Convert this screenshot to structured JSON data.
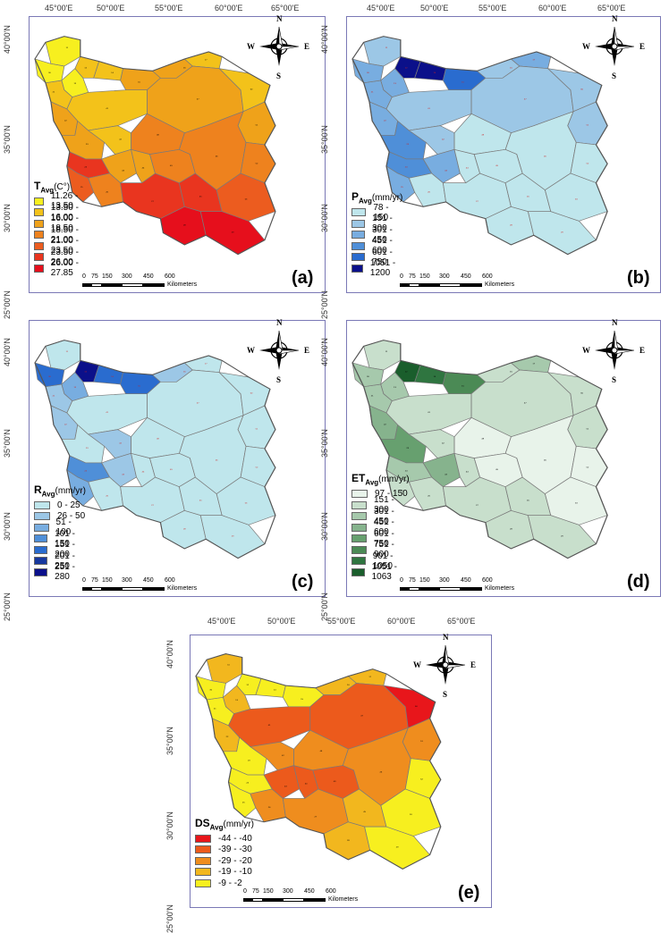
{
  "longitude_ticks": [
    "45°00'E",
    "50°00'E",
    "55°00'E",
    "60°00'E",
    "65°00'E"
  ],
  "latitude_ticks": [
    "40°00'N",
    "35°00'N",
    "30°00'N",
    "25°00'N"
  ],
  "compass": {
    "n": "N",
    "s": "S",
    "e": "E",
    "w": "W",
    "icon": "compass-rose-icon"
  },
  "scale": {
    "ticks": [
      "0",
      "75",
      "150",
      "300",
      "450",
      "600"
    ],
    "unit": "Kilometers"
  },
  "panels": [
    {
      "id": "a",
      "label": "(a)",
      "title_main": "T",
      "title_sub": "Avg",
      "title_unit": "(C°)",
      "label_color": "#000000",
      "legend": [
        {
          "range": "11.26 - 13.50",
          "color": "#f7ef1f"
        },
        {
          "range": "13.50 - 16.00",
          "color": "#f3c21a"
        },
        {
          "range": "16.00 - 18.50",
          "color": "#efa21a"
        },
        {
          "range": "18.50 - 21.00",
          "color": "#ee821e"
        },
        {
          "range": "21.00 - 23.50",
          "color": "#ec5c1f"
        },
        {
          "range": "23.50 - 26.00",
          "color": "#e9351f"
        },
        {
          "range": "26.00 - 27.85",
          "color": "#e60f1c"
        }
      ],
      "regions": [
        {
          "id": "11",
          "color": "#f7ef1f"
        },
        {
          "id": "12",
          "color": "#f3c21a"
        },
        {
          "id": "13",
          "color": "#f7ef1f"
        },
        {
          "id": "14",
          "color": "#f3c21a"
        },
        {
          "id": "15",
          "color": "#efa21a"
        },
        {
          "id": "16",
          "color": "#efa21a"
        },
        {
          "id": "17",
          "color": "#f3c21a"
        },
        {
          "id": "21",
          "color": "#f3c21a"
        },
        {
          "id": "22",
          "color": "#efa21a"
        },
        {
          "id": "23",
          "color": "#efa21a"
        },
        {
          "id": "24",
          "color": "#e9351f"
        },
        {
          "id": "25",
          "color": "#ec5c1f"
        },
        {
          "id": "26",
          "color": "#ee821e"
        },
        {
          "id": "27",
          "color": "#e9351f"
        },
        {
          "id": "28",
          "color": "#e60f1c"
        },
        {
          "id": "29",
          "color": "#e60f1c"
        },
        {
          "id": "30",
          "color": "#f7ef1f"
        },
        {
          "id": "41",
          "color": "#f3c21a"
        },
        {
          "id": "42",
          "color": "#f3c21a"
        },
        {
          "id": "43",
          "color": "#efa21a"
        },
        {
          "id": "44",
          "color": "#efa21a"
        },
        {
          "id": "45",
          "color": "#e9351f"
        },
        {
          "id": "46",
          "color": "#ee821e"
        },
        {
          "id": "47",
          "color": "#efa21a"
        },
        {
          "id": "48",
          "color": "#ee821e"
        },
        {
          "id": "49",
          "color": "#ee821e"
        },
        {
          "id": "51",
          "color": "#efa21a"
        },
        {
          "id": "52",
          "color": "#ee821e"
        },
        {
          "id": "53",
          "color": "#ec5c1f"
        },
        {
          "id": "60",
          "color": "#f3c21a"
        }
      ]
    },
    {
      "id": "b",
      "label": "(b)",
      "title_main": "P",
      "title_sub": "Avg",
      "title_unit": "(mm/yr)",
      "label_color": "#cc2222",
      "legend": [
        {
          "range": "78 - 150",
          "color": "#bfe6ec"
        },
        {
          "range": "151 - 300",
          "color": "#9cc7e6"
        },
        {
          "range": "301 - 450",
          "color": "#78ade0"
        },
        {
          "range": "451 - 600",
          "color": "#4f8fd8"
        },
        {
          "range": "601 - 750",
          "color": "#2a6ccf"
        },
        {
          "range": "1051 - 1200",
          "color": "#0b108a"
        }
      ],
      "regions": [
        {
          "id": "11",
          "color": "#9cc7e6"
        },
        {
          "id": "12",
          "color": "#0b108a"
        },
        {
          "id": "13",
          "color": "#78ade0"
        },
        {
          "id": "14",
          "color": "#0b108a"
        },
        {
          "id": "15",
          "color": "#2a6ccf"
        },
        {
          "id": "16",
          "color": "#9cc7e6"
        },
        {
          "id": "17",
          "color": "#78ade0"
        },
        {
          "id": "21",
          "color": "#78ade0"
        },
        {
          "id": "22",
          "color": "#78ade0"
        },
        {
          "id": "23",
          "color": "#4f8fd8"
        },
        {
          "id": "24",
          "color": "#4f8fd8"
        },
        {
          "id": "25",
          "color": "#78ade0"
        },
        {
          "id": "26",
          "color": "#bfe6ec"
        },
        {
          "id": "27",
          "color": "#bfe6ec"
        },
        {
          "id": "28",
          "color": "#bfe6ec"
        },
        {
          "id": "29",
          "color": "#bfe6ec"
        },
        {
          "id": "30",
          "color": "#78ade0"
        },
        {
          "id": "41",
          "color": "#9cc7e6"
        },
        {
          "id": "42",
          "color": "#9cc7e6"
        },
        {
          "id": "43",
          "color": "#78ade0"
        },
        {
          "id": "44",
          "color": "#bfe6ec"
        },
        {
          "id": "45",
          "color": "#bfe6ec"
        },
        {
          "id": "46",
          "color": "#bfe6ec"
        },
        {
          "id": "47",
          "color": "#9cc7e6"
        },
        {
          "id": "48",
          "color": "#bfe6ec"
        },
        {
          "id": "49",
          "color": "#bfe6ec"
        },
        {
          "id": "51",
          "color": "#9cc7e6"
        },
        {
          "id": "52",
          "color": "#bfe6ec"
        },
        {
          "id": "53",
          "color": "#bfe6ec"
        },
        {
          "id": "60",
          "color": "#9cc7e6"
        }
      ]
    },
    {
      "id": "c",
      "label": "(c)",
      "title_main": "R",
      "title_sub": "Avg",
      "title_unit": "(mm/yr)",
      "label_color": "#cc2222",
      "legend": [
        {
          "range": "0 - 25",
          "color": "#bfe6ec"
        },
        {
          "range": "26 - 50",
          "color": "#9cc7e6"
        },
        {
          "range": "51 - 100",
          "color": "#78ade0"
        },
        {
          "range": "101 - 150",
          "color": "#4f8fd8"
        },
        {
          "range": "151 - 200",
          "color": "#2a6ccf"
        },
        {
          "range": "201 - 250",
          "color": "#17389e"
        },
        {
          "range": "251 - 280",
          "color": "#0b108a"
        }
      ],
      "regions": [
        {
          "id": "11",
          "color": "#bfe6ec"
        },
        {
          "id": "12",
          "color": "#0b108a"
        },
        {
          "id": "13",
          "color": "#78ade0"
        },
        {
          "id": "14",
          "color": "#2a6ccf"
        },
        {
          "id": "15",
          "color": "#2a6ccf"
        },
        {
          "id": "16",
          "color": "#9cc7e6"
        },
        {
          "id": "17",
          "color": "#bfe6ec"
        },
        {
          "id": "21",
          "color": "#9cc7e6"
        },
        {
          "id": "22",
          "color": "#9cc7e6"
        },
        {
          "id": "23",
          "color": "#bfe6ec"
        },
        {
          "id": "24",
          "color": "#4f8fd8"
        },
        {
          "id": "25",
          "color": "#78ade0"
        },
        {
          "id": "26",
          "color": "#bfe6ec"
        },
        {
          "id": "27",
          "color": "#bfe6ec"
        },
        {
          "id": "28",
          "color": "#bfe6ec"
        },
        {
          "id": "29",
          "color": "#bfe6ec"
        },
        {
          "id": "30",
          "color": "#2a6ccf"
        },
        {
          "id": "41",
          "color": "#bfe6ec"
        },
        {
          "id": "42",
          "color": "#9cc7e6"
        },
        {
          "id": "43",
          "color": "#9cc7e6"
        },
        {
          "id": "44",
          "color": "#bfe6ec"
        },
        {
          "id": "45",
          "color": "#bfe6ec"
        },
        {
          "id": "46",
          "color": "#bfe6ec"
        },
        {
          "id": "47",
          "color": "#bfe6ec"
        },
        {
          "id": "48",
          "color": "#bfe6ec"
        },
        {
          "id": "49",
          "color": "#bfe6ec"
        },
        {
          "id": "51",
          "color": "#bfe6ec"
        },
        {
          "id": "52",
          "color": "#bfe6ec"
        },
        {
          "id": "53",
          "color": "#bfe6ec"
        },
        {
          "id": "60",
          "color": "#bfe6ec"
        }
      ]
    },
    {
      "id": "d",
      "label": "(d)",
      "title_main": "ET",
      "title_sub": "Avg",
      "title_unit": "(mm/yr)",
      "label_color": "#000000",
      "legend": [
        {
          "range": "97 - 150",
          "color": "#e8f3ea"
        },
        {
          "range": "151 - 300",
          "color": "#c8dfcc"
        },
        {
          "range": "301 - 450",
          "color": "#a6c9ac"
        },
        {
          "range": "451 - 600",
          "color": "#86b38d"
        },
        {
          "range": "601 - 750",
          "color": "#67a06f"
        },
        {
          "range": "751 - 900",
          "color": "#4b8a55"
        },
        {
          "range": "901 - 1050",
          "color": "#2f7540"
        },
        {
          "range": "1051 - 1063",
          "color": "#1a5e2c"
        }
      ],
      "regions": [
        {
          "id": "11",
          "color": "#c8dfcc"
        },
        {
          "id": "12",
          "color": "#1a5e2c"
        },
        {
          "id": "13",
          "color": "#a6c9ac"
        },
        {
          "id": "14",
          "color": "#2f7540"
        },
        {
          "id": "15",
          "color": "#4b8a55"
        },
        {
          "id": "16",
          "color": "#c8dfcc"
        },
        {
          "id": "17",
          "color": "#a6c9ac"
        },
        {
          "id": "21",
          "color": "#a6c9ac"
        },
        {
          "id": "22",
          "color": "#86b38d"
        },
        {
          "id": "23",
          "color": "#67a06f"
        },
        {
          "id": "24",
          "color": "#a6c9ac"
        },
        {
          "id": "25",
          "color": "#c8dfcc"
        },
        {
          "id": "26",
          "color": "#c8dfcc"
        },
        {
          "id": "27",
          "color": "#c8dfcc"
        },
        {
          "id": "28",
          "color": "#c8dfcc"
        },
        {
          "id": "29",
          "color": "#c8dfcc"
        },
        {
          "id": "30",
          "color": "#a6c9ac"
        },
        {
          "id": "41",
          "color": "#c8dfcc"
        },
        {
          "id": "42",
          "color": "#c8dfcc"
        },
        {
          "id": "43",
          "color": "#86b38d"
        },
        {
          "id": "44",
          "color": "#c8dfcc"
        },
        {
          "id": "45",
          "color": "#c8dfcc"
        },
        {
          "id": "46",
          "color": "#e8f3ea"
        },
        {
          "id": "47",
          "color": "#c8dfcc"
        },
        {
          "id": "48",
          "color": "#e8f3ea"
        },
        {
          "id": "49",
          "color": "#e8f3ea"
        },
        {
          "id": "51",
          "color": "#c8dfcc"
        },
        {
          "id": "52",
          "color": "#e8f3ea"
        },
        {
          "id": "53",
          "color": "#e8f3ea"
        },
        {
          "id": "60",
          "color": "#c8dfcc"
        }
      ]
    },
    {
      "id": "e",
      "label": "(e)",
      "title_main": "DS",
      "title_sub": "Avg",
      "title_unit": "(mm/yr)",
      "label_color": "#000000",
      "legend": [
        {
          "range": "-44 - -40",
          "color": "#e8161b"
        },
        {
          "range": "-39 - -30",
          "color": "#ec5a1c"
        },
        {
          "range": "-29 - -20",
          "color": "#ef8d1e"
        },
        {
          "range": "-19 - -10",
          "color": "#f2b71e"
        },
        {
          "range": "-9 - -2",
          "color": "#f7ef1f"
        }
      ],
      "regions": [
        {
          "id": "11",
          "color": "#f2b71e"
        },
        {
          "id": "12",
          "color": "#f7ef1f"
        },
        {
          "id": "13",
          "color": "#f2b71e"
        },
        {
          "id": "14",
          "color": "#f7ef1f"
        },
        {
          "id": "15",
          "color": "#f7ef1f"
        },
        {
          "id": "16",
          "color": "#f2b71e"
        },
        {
          "id": "17",
          "color": "#f2b71e"
        },
        {
          "id": "21",
          "color": "#f7ef1f"
        },
        {
          "id": "22",
          "color": "#f2b71e"
        },
        {
          "id": "23",
          "color": "#f7ef1f"
        },
        {
          "id": "24",
          "color": "#f7ef1f"
        },
        {
          "id": "25",
          "color": "#f7ef1f"
        },
        {
          "id": "26",
          "color": "#ef8d1e"
        },
        {
          "id": "27",
          "color": "#ef8d1e"
        },
        {
          "id": "28",
          "color": "#f2b71e"
        },
        {
          "id": "29",
          "color": "#f7ef1f"
        },
        {
          "id": "30",
          "color": "#f7ef1f"
        },
        {
          "id": "41",
          "color": "#ec5a1c"
        },
        {
          "id": "42",
          "color": "#ef8d1e"
        },
        {
          "id": "43",
          "color": "#ec5a1c"
        },
        {
          "id": "44",
          "color": "#ec5a1c"
        },
        {
          "id": "45",
          "color": "#f2b71e"
        },
        {
          "id": "46",
          "color": "#ef8d1e"
        },
        {
          "id": "47",
          "color": "#ec5a1c"
        },
        {
          "id": "48",
          "color": "#ef8d1e"
        },
        {
          "id": "49",
          "color": "#ec5a1c"
        },
        {
          "id": "51",
          "color": "#ef8d1e"
        },
        {
          "id": "52",
          "color": "#f7ef1f"
        },
        {
          "id": "53",
          "color": "#f7ef1f"
        },
        {
          "id": "60",
          "color": "#e8161b"
        }
      ]
    }
  ]
}
